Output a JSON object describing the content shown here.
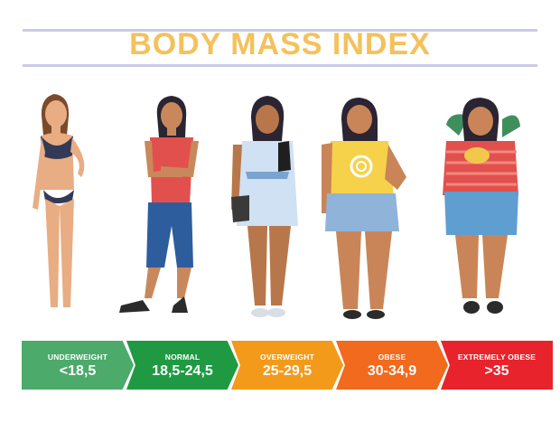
{
  "title": "BODY MASS INDEX",
  "categories": [
    {
      "label": "UNDERWEIGHT",
      "range": "<18,5",
      "color": "#4caa6a"
    },
    {
      "label": "NORMAL",
      "range": "18,5-24,5",
      "color": "#1f9a43"
    },
    {
      "label": "OVERWEIGHT",
      "range": "25-29,5",
      "color": "#f39a1b"
    },
    {
      "label": "OBESE",
      "range": "30-34,9",
      "color": "#f16a1e"
    },
    {
      "label": "EXTREMELY OBESE",
      "range": ">35",
      "color": "#e8232b"
    }
  ]
}
